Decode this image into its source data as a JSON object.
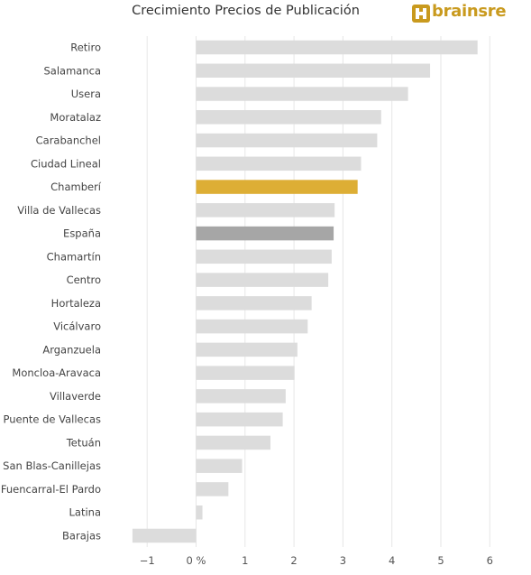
{
  "chart_data": {
    "type": "bar",
    "orientation": "horizontal",
    "title": "Crecimiento Precios de Publicación",
    "categories": [
      "Retiro",
      "Salamanca",
      "Usera",
      "Moratalaz",
      "Carabanchel",
      "Ciudad Lineal",
      "Chamberí",
      "Villa de Vallecas",
      "España",
      "Chamartín",
      "Centro",
      "Hortaleza",
      "Vicálvaro",
      "Arganzuela",
      "Moncloa-Aravaca",
      "Villaverde",
      "Puente de Vallecas",
      "Tetuán",
      "San Blas-Canillejas",
      "Fuencarral-El Pardo",
      "Latina",
      "Barajas"
    ],
    "values": [
      5.75,
      4.78,
      4.33,
      3.78,
      3.7,
      3.37,
      3.3,
      2.83,
      2.81,
      2.77,
      2.7,
      2.36,
      2.28,
      2.07,
      2.01,
      1.83,
      1.77,
      1.52,
      0.94,
      0.66,
      0.13,
      -1.3
    ],
    "bar_colors": [
      "#dcdcdc",
      "#dcdcdc",
      "#dcdcdc",
      "#dcdcdc",
      "#dcdcdc",
      "#dcdcdc",
      "#ddae35",
      "#dcdcdc",
      "#a6a6a6",
      "#dcdcdc",
      "#dcdcdc",
      "#dcdcdc",
      "#dcdcdc",
      "#dcdcdc",
      "#dcdcdc",
      "#dcdcdc",
      "#dcdcdc",
      "#dcdcdc",
      "#dcdcdc",
      "#dcdcdc",
      "#dcdcdc",
      "#dcdcdc"
    ],
    "xlim": [
      -1.6,
      6.4
    ],
    "xticks": [
      -1,
      0,
      1,
      2,
      3,
      4,
      5,
      6
    ],
    "xtick_labels": [
      "−1",
      "0 %",
      "1",
      "2",
      "3",
      "4",
      "5",
      "6"
    ],
    "grid": true,
    "legend": "none"
  },
  "brand": {
    "name": "brainsre",
    "color": "#c99a1e"
  }
}
